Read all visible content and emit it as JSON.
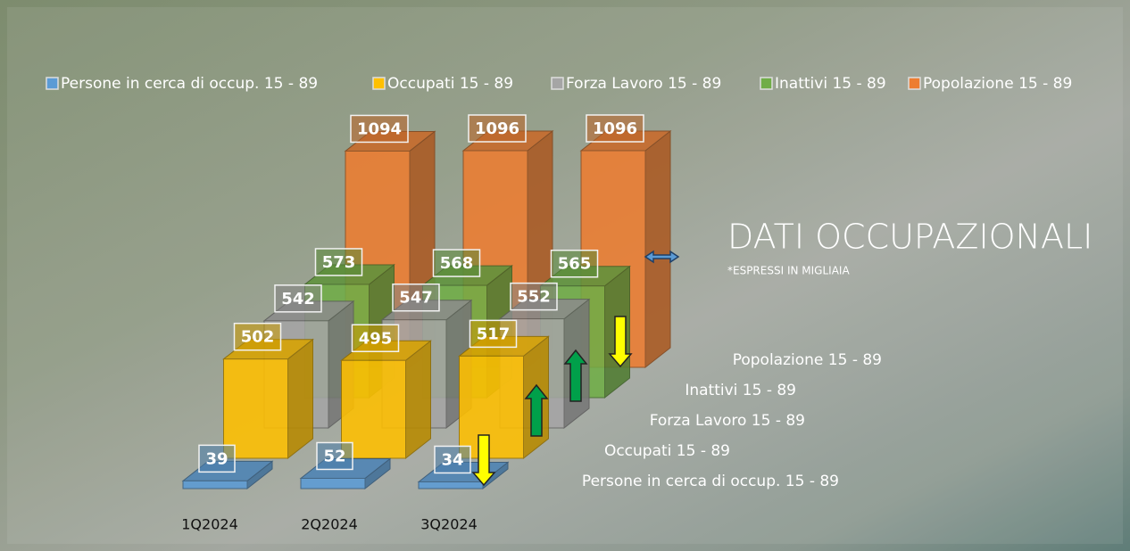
{
  "chart_data": {
    "type": "bar3d",
    "title": "DATI OCCUPAZIONALI",
    "subtitle": "*ESPRESSI IN MIGLIAIA",
    "categories": [
      "1Q2024",
      "2Q2024",
      "3Q2024"
    ],
    "series": [
      {
        "name": "Persone in cerca di occup. 15 - 89",
        "color": "#5b9bd5",
        "values": [
          39,
          52,
          34
        ]
      },
      {
        "name": "Occupati 15 - 89",
        "color": "#ffc000",
        "values": [
          502,
          495,
          517
        ]
      },
      {
        "name": "Forza Lavoro 15 - 89",
        "color": "#a5a5a5",
        "values": [
          542,
          547,
          552
        ]
      },
      {
        "name": "Inattivi 15 - 89",
        "color": "#70ad47",
        "values": [
          573,
          568,
          565
        ]
      },
      {
        "name": "Popolazione 15 - 89",
        "color": "#ed7d31",
        "values": [
          1094,
          1096,
          1096
        ]
      }
    ],
    "legend": "top"
  }
}
